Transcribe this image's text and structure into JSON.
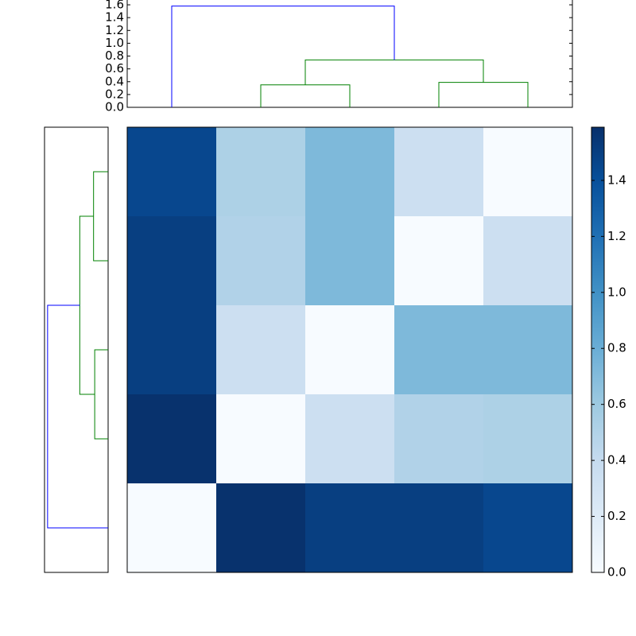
{
  "chart_data": {
    "type": "heatmap",
    "colormap": "Blues",
    "clim": [
      0,
      1.59
    ],
    "matrix": [
      [
        1.45,
        0.52,
        0.72,
        0.35,
        0.0
      ],
      [
        1.5,
        0.5,
        0.72,
        0.0,
        0.35
      ],
      [
        1.5,
        0.35,
        0.0,
        0.72,
        0.72
      ],
      [
        1.58,
        0.0,
        0.35,
        0.5,
        0.52
      ],
      [
        0.0,
        1.58,
        1.5,
        1.5,
        1.45
      ]
    ],
    "colorbar_ticks": [
      {
        "value": 0,
        "label": "0.0"
      },
      0.2,
      0.4,
      0.6,
      0.8,
      {
        "value": 1,
        "label": "1.0"
      },
      1.2,
      1.4
    ],
    "top_dendrogram": {
      "ylim": [
        0,
        1.675
      ],
      "yticks": [
        {
          "value": 0,
          "label": "0.0"
        },
        0.2,
        0.4,
        0.6,
        0.8,
        {
          "value": 1,
          "label": "1.0"
        },
        1.2,
        1.4,
        1.6
      ],
      "links": [
        {
          "color": "#008000",
          "icoord": [
            1,
            1,
            2,
            2
          ],
          "dcoord": [
            0,
            0.35,
            0.35,
            0
          ]
        },
        {
          "color": "#008000",
          "icoord": [
            3,
            3,
            4,
            4
          ],
          "dcoord": [
            0,
            0.39,
            0.39,
            0
          ]
        },
        {
          "color": "#008000",
          "icoord": [
            1.5,
            1.5,
            3.5,
            3.5
          ],
          "dcoord": [
            0.35,
            0.74,
            0.74,
            0.39
          ]
        },
        {
          "color": "#0000ff",
          "icoord": [
            0,
            0,
            2.5,
            2.5
          ],
          "dcoord": [
            0,
            1.58,
            1.58,
            0.74
          ]
        }
      ]
    },
    "left_dendrogram": {
      "xlim": [
        0,
        1.66
      ],
      "links": [
        {
          "color": "#008000",
          "icoord": [
            0,
            0,
            1,
            1
          ],
          "dcoord": [
            0,
            0.38,
            0.38,
            0
          ]
        },
        {
          "color": "#008000",
          "icoord": [
            2,
            2,
            3,
            3
          ],
          "dcoord": [
            0,
            0.35,
            0.35,
            0
          ]
        },
        {
          "color": "#008000",
          "icoord": [
            0.5,
            0.5,
            2.5,
            2.5
          ],
          "dcoord": [
            0.38,
            0.74,
            0.74,
            0.35
          ]
        },
        {
          "color": "#0000ff",
          "icoord": [
            4,
            4,
            1.5,
            1.5
          ],
          "dcoord": [
            0,
            1.58,
            1.58,
            0.74
          ]
        }
      ]
    }
  }
}
